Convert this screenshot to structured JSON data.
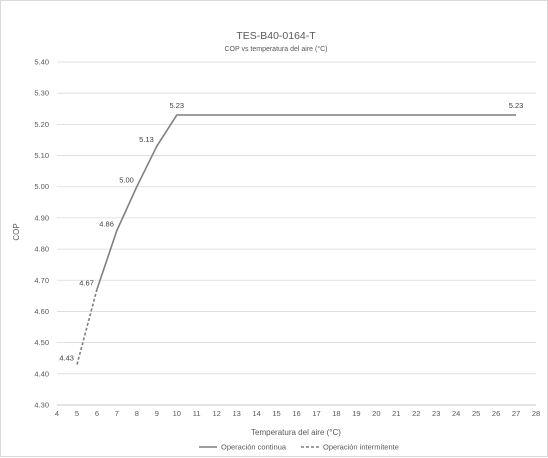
{
  "chart_data": {
    "type": "line",
    "title": "TES-B40-0164-T",
    "subtitle": "COP vs temperatura del aire (°C)",
    "xlabel": "Temperatura del aire (°C)",
    "ylabel": "COP",
    "xlim": [
      4,
      28
    ],
    "ylim": [
      4.3,
      5.4
    ],
    "x_ticks": [
      "4",
      "5",
      "6",
      "7",
      "8",
      "9",
      "10",
      "11",
      "12",
      "13",
      "14",
      "15",
      "16",
      "17",
      "18",
      "19",
      "20",
      "21",
      "22",
      "23",
      "24",
      "25",
      "26",
      "27",
      "28"
    ],
    "y_ticks": [
      "4.30",
      "4.40",
      "4.50",
      "4.60",
      "4.70",
      "4.80",
      "4.90",
      "5.00",
      "5.10",
      "5.20",
      "5.30",
      "5.40"
    ],
    "grid": "horizontal",
    "legend_position": "bottom",
    "series": [
      {
        "name": "Operación continua",
        "style": "solid",
        "color": "#7f7f7f",
        "x": [
          6,
          7,
          8,
          9,
          10,
          27
        ],
        "y": [
          4.67,
          4.86,
          5.0,
          5.13,
          5.23,
          5.23
        ]
      },
      {
        "name": "Operación intermitente",
        "style": "dashed",
        "color": "#7f7f7f",
        "x": [
          5,
          6
        ],
        "y": [
          4.43,
          4.67
        ]
      }
    ],
    "data_labels": [
      {
        "x": 5,
        "y": 4.43,
        "text": "4.43"
      },
      {
        "x": 6,
        "y": 4.67,
        "text": "4.67"
      },
      {
        "x": 7,
        "y": 4.86,
        "text": "4.86"
      },
      {
        "x": 8,
        "y": 5.0,
        "text": "5.00"
      },
      {
        "x": 9,
        "y": 5.13,
        "text": "5.13"
      },
      {
        "x": 10,
        "y": 5.23,
        "text": "5.23"
      },
      {
        "x": 27,
        "y": 5.23,
        "text": "5.23"
      }
    ]
  }
}
